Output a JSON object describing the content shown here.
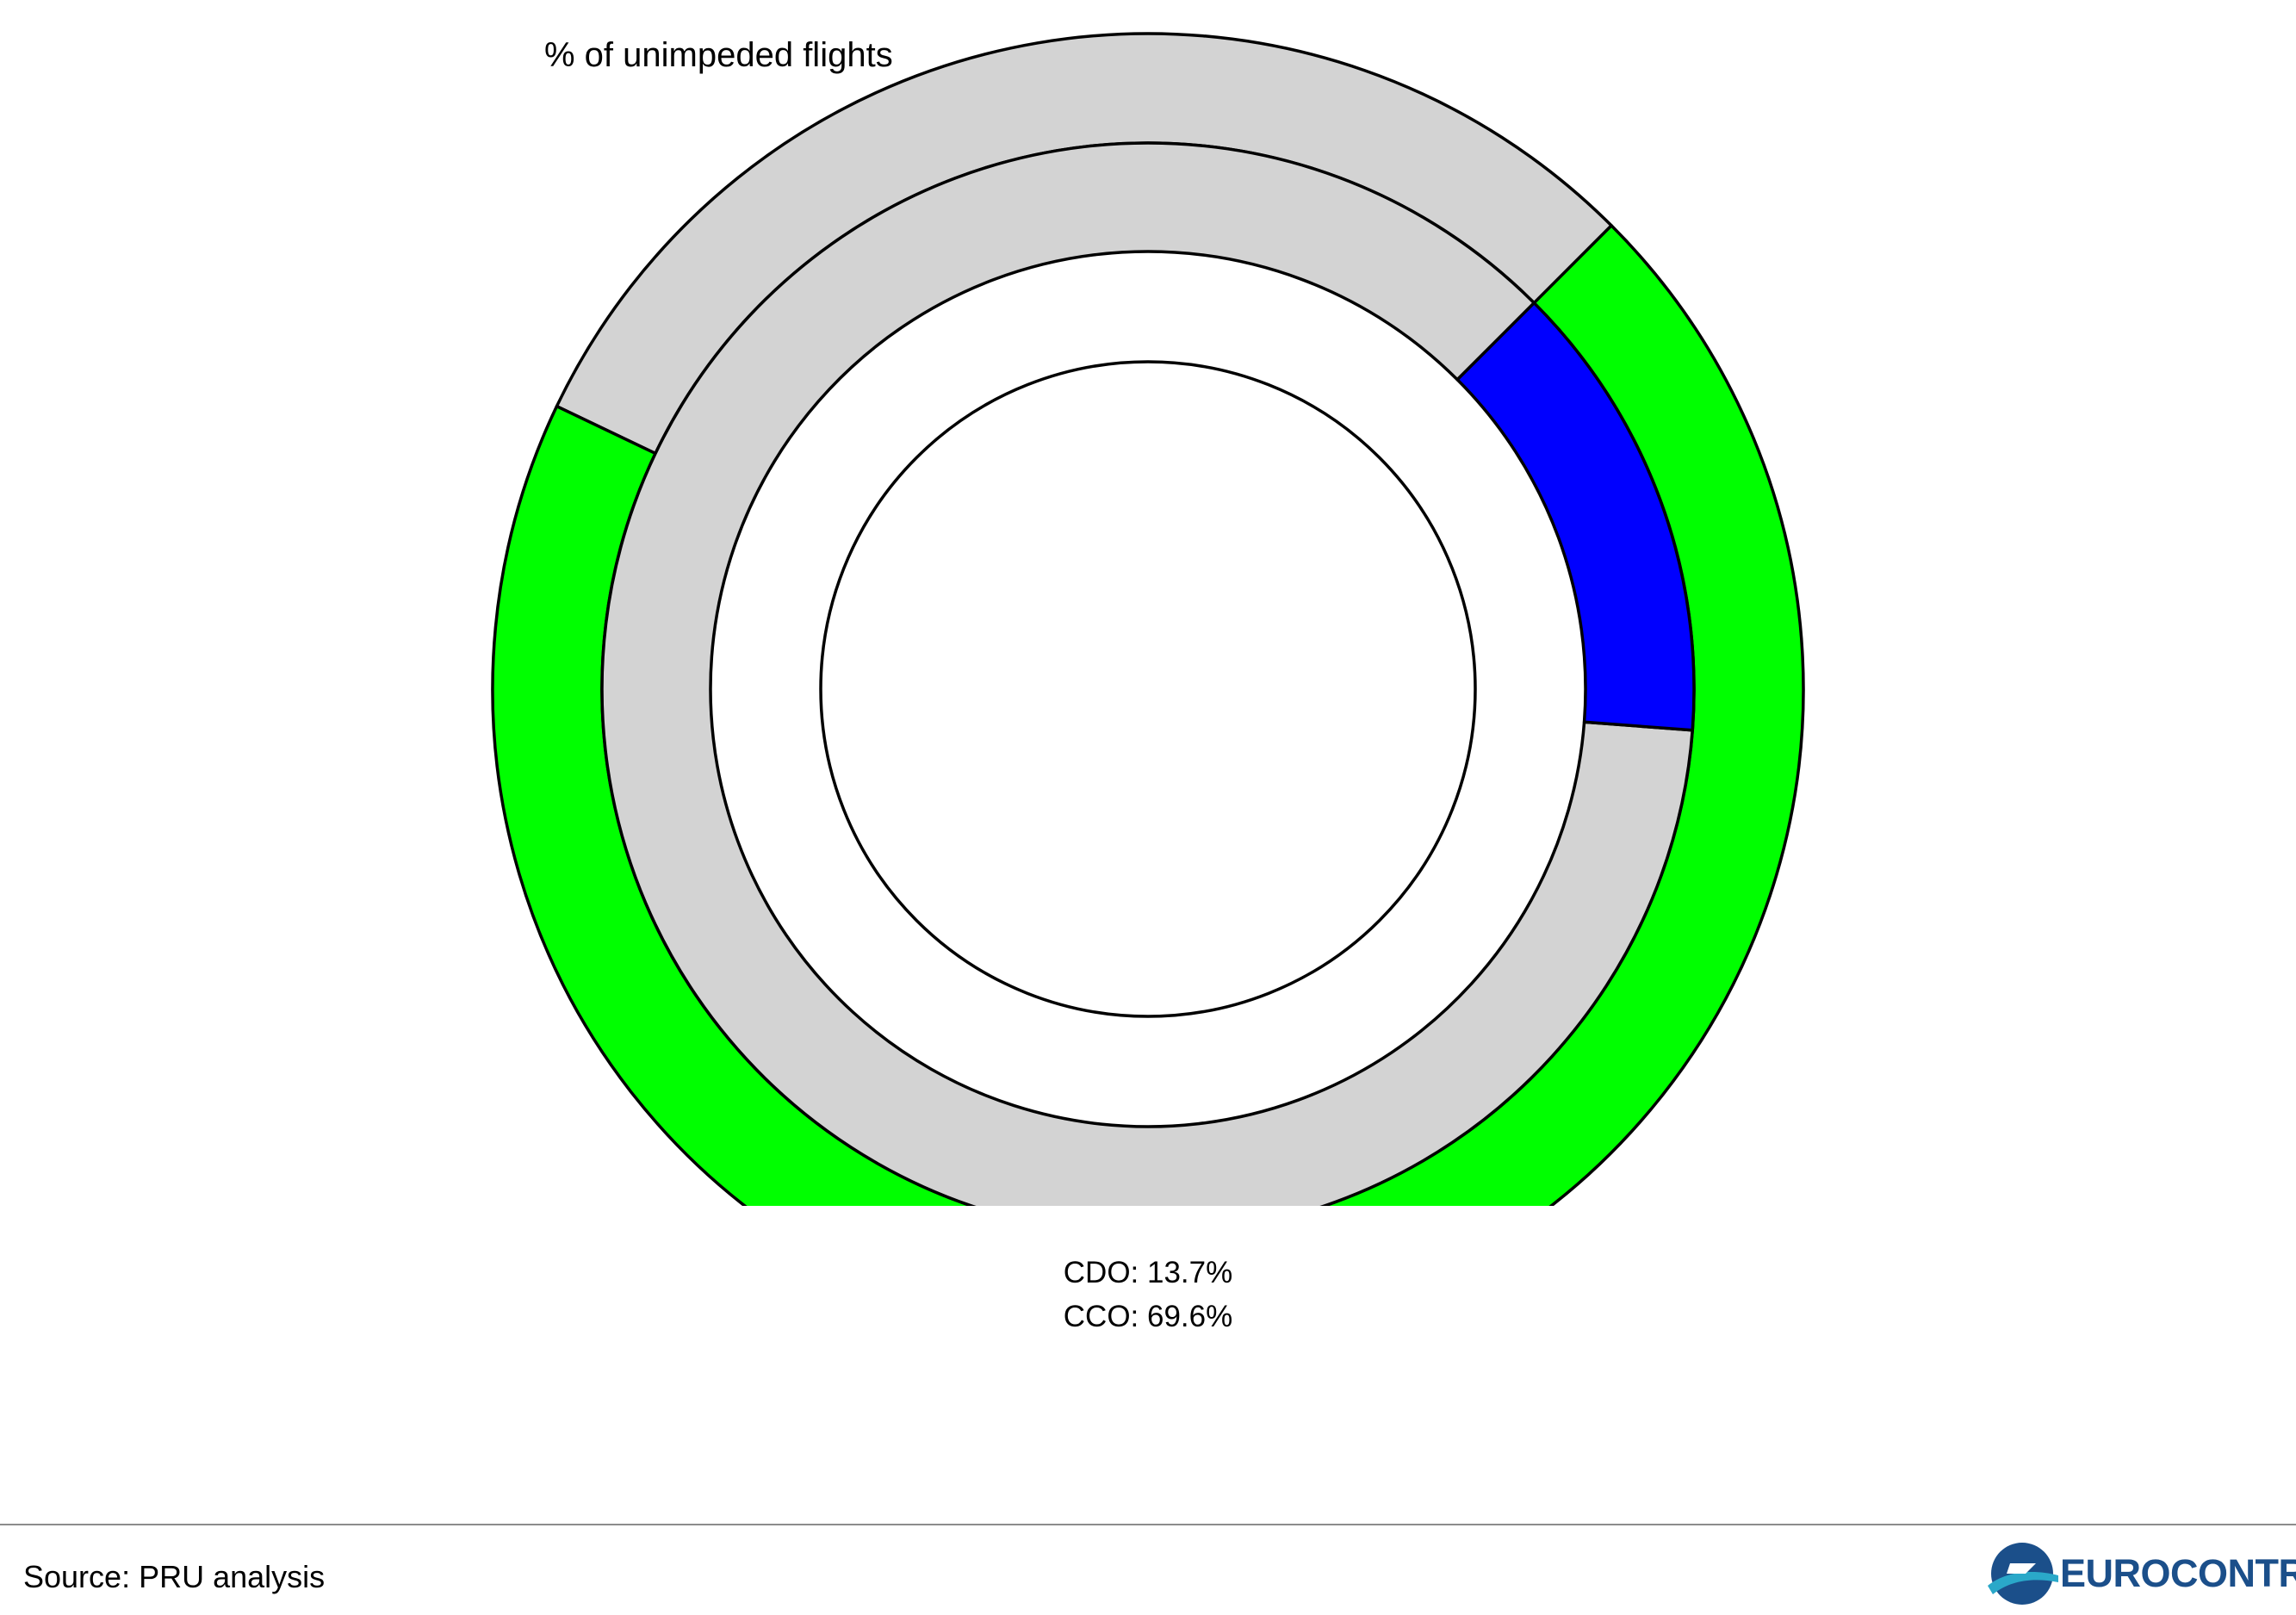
{
  "chart_data": {
    "type": "donut",
    "title": "% of unimpeded flights",
    "rings": [
      {
        "ring": "outer",
        "label": "CCO",
        "value": 69.6,
        "unit": "%",
        "colors": {
          "filled": "#00ff00",
          "remaining": "#d3d3d3"
        }
      },
      {
        "ring": "inner",
        "label": "CDO",
        "value": 13.7,
        "unit": "%",
        "colors": {
          "filled": "#0000ff",
          "remaining": "#d3d3d3"
        }
      }
    ],
    "stats": [
      {
        "text": "CDO: 13.7%"
      },
      {
        "text": "CCO: 69.6%"
      }
    ]
  },
  "footer": {
    "source": "Source: PRU analysis",
    "logo_text": "EUROCONTROL",
    "logo_color": "#1b4f8a",
    "logo_accent_color": "#2aa8c9"
  }
}
